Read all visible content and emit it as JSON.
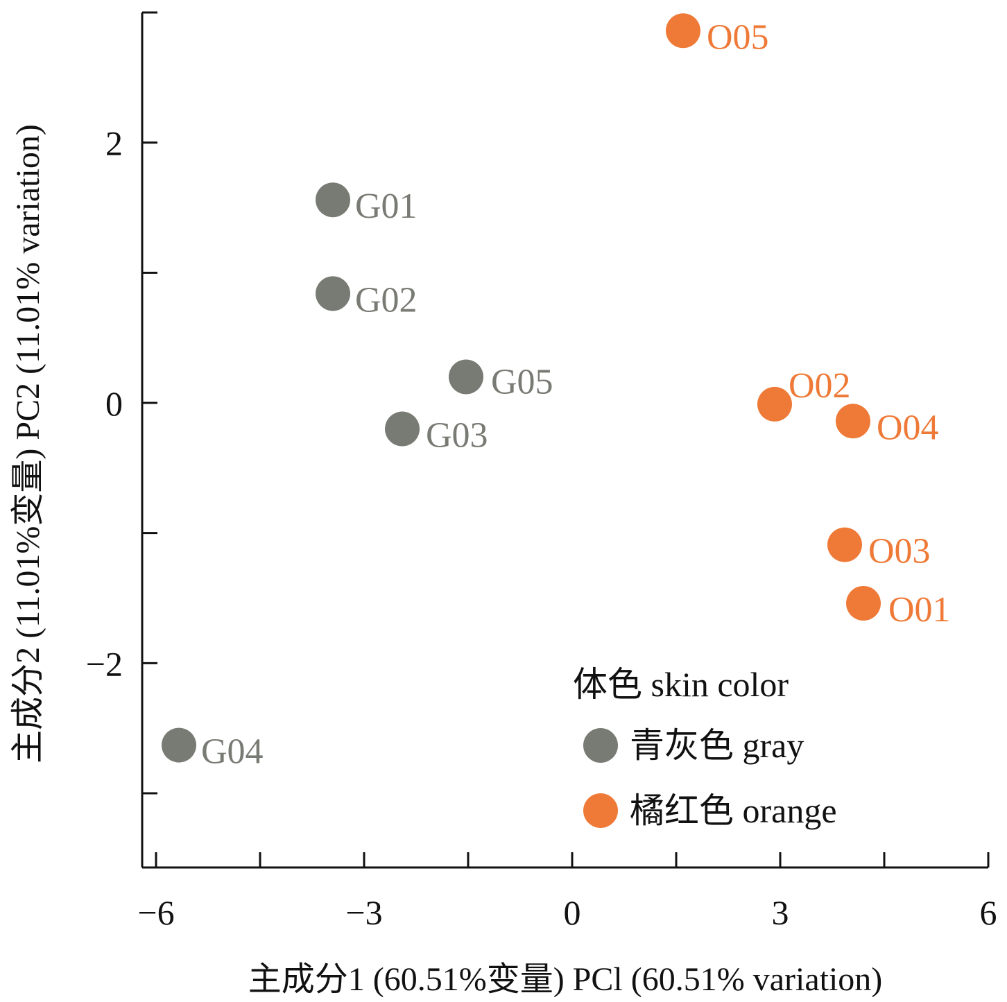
{
  "chart_data": {
    "type": "scatter",
    "title": "",
    "xlabel": "主成分1 (60.51%变量) PCl (60.51% variation)",
    "ylabel": "主成分2 (11.01%变量) PC2 (11.01% variation)",
    "xlim": [
      -6.2,
      6.0
    ],
    "ylim": [
      -3.57,
      3.0
    ],
    "x_ticks": [
      -6,
      -3,
      0,
      3,
      6
    ],
    "x_tick_labels": [
      "−6",
      "−3",
      "0",
      "3",
      "6"
    ],
    "x_minor_ticks": [
      -4.5,
      -1.5,
      1.5,
      4.5
    ],
    "y_ticks": [
      -2,
      0,
      2
    ],
    "y_tick_labels": [
      "−2",
      "0",
      "2"
    ],
    "y_minor_ticks": [
      -3,
      -1,
      1
    ],
    "grid": false,
    "legend_placement": "bottom-right",
    "legend_title": "体色 skin color",
    "series": [
      {
        "name": "青灰色 gray",
        "color": "#787b73",
        "points": [
          {
            "label": "G01",
            "x": -3.45,
            "y": 1.56
          },
          {
            "label": "G02",
            "x": -3.45,
            "y": 0.84
          },
          {
            "label": "G03",
            "x": -2.45,
            "y": -0.2
          },
          {
            "label": "G04",
            "x": -5.67,
            "y": -2.63
          },
          {
            "label": "G05",
            "x": -1.53,
            "y": 0.2
          }
        ]
      },
      {
        "name": "橘红色 orange",
        "color": "#ef7a37",
        "points": [
          {
            "label": "O01",
            "x": 4.2,
            "y": -1.54
          },
          {
            "label": "O02",
            "x": 2.92,
            "y": -0.01
          },
          {
            "label": "O03",
            "x": 3.93,
            "y": -1.09
          },
          {
            "label": "O04",
            "x": 4.05,
            "y": -0.14
          },
          {
            "label": "O05",
            "x": 1.6,
            "y": 2.86
          }
        ]
      }
    ]
  }
}
